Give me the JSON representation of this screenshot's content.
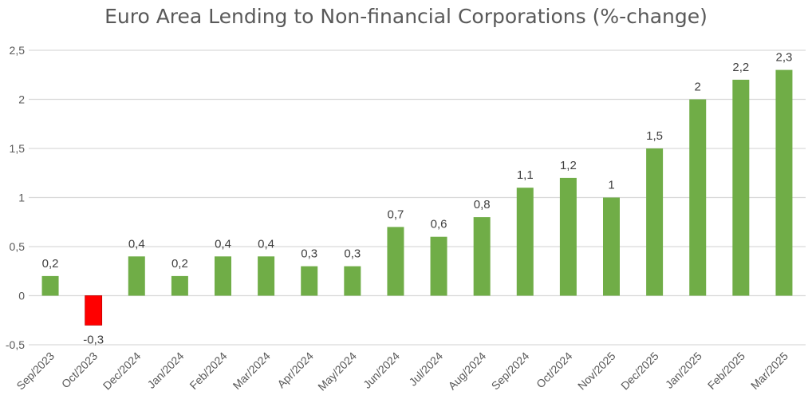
{
  "chart_data": {
    "type": "bar",
    "title": "Euro Area Lending to Non-financial Corporations (%-change)",
    "xlabel": "",
    "ylabel": "",
    "categories": [
      "Sep/2023",
      "Oct/2023",
      "Dec/2024",
      "Jan/2024",
      "Feb/2024",
      "Mar/2024",
      "Apr/2024",
      "May/2024",
      "Jun/2024",
      "Jul/2024",
      "Aug/2024",
      "Sep/2024",
      "Oct/2024",
      "Nov/2025",
      "Dec/2025",
      "Jan/2025",
      "Feb/2025",
      "Mar/2025"
    ],
    "values": [
      0.2,
      -0.3,
      0.4,
      0.2,
      0.4,
      0.4,
      0.3,
      0.3,
      0.7,
      0.6,
      0.8,
      1.1,
      1.2,
      1.0,
      1.5,
      2.0,
      2.2,
      2.3
    ],
    "data_labels": [
      "0,2",
      "-0,3",
      "0,4",
      "0,2",
      "0,4",
      "0,4",
      "0,3",
      "0,3",
      "0,7",
      "0,6",
      "0,8",
      "1,1",
      "1,2",
      "1",
      "1,5",
      "2",
      "2,2",
      "2,3"
    ],
    "ylim": [
      -0.5,
      2.5
    ],
    "yticks": [
      -0.5,
      0,
      0.5,
      1,
      1.5,
      2,
      2.5
    ],
    "ytick_labels": [
      "-0,5",
      "0",
      "0,5",
      "1",
      "1,5",
      "2",
      "2,5"
    ],
    "grid": true,
    "legend": "none",
    "colors": {
      "positive": "#70ad47",
      "negative": "#ff0000",
      "grid": "#d9d9d9",
      "text": "#595959"
    }
  }
}
